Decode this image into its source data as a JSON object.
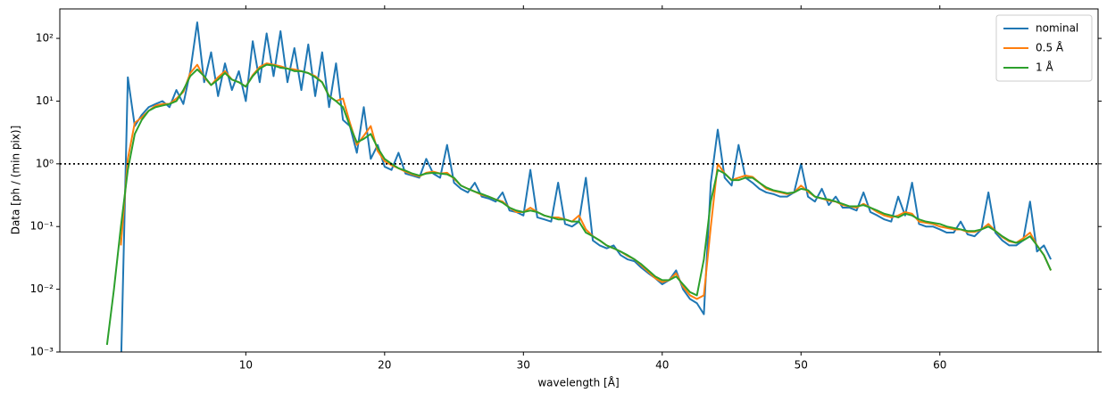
{
  "chart_data": {
    "type": "line",
    "x_label": "wavelength [Å]",
    "y_label": "Data [ph / (min pix)]",
    "xlim": [
      -3.4,
      71.4
    ],
    "xticks": [
      10,
      20,
      30,
      40,
      50,
      60
    ],
    "ylim": [
      0.001,
      295
    ],
    "yticks": [
      {
        "value": 0.001,
        "label": "10⁻³"
      },
      {
        "value": 0.01,
        "label": "10⁻²"
      },
      {
        "value": 0.1,
        "label": "10⁻¹"
      },
      {
        "value": 1,
        "label": "10⁰"
      },
      {
        "value": 10,
        "label": "10¹"
      },
      {
        "value": 100,
        "label": "10²"
      }
    ],
    "log_y": true,
    "reference_line": 1,
    "legend": "upper right",
    "x": [
      0,
      0.5,
      1,
      1.5,
      2,
      2.5,
      3,
      3.5,
      4,
      4.5,
      5,
      5.5,
      6,
      6.5,
      7,
      7.5,
      8,
      8.5,
      9,
      9.5,
      10,
      10.5,
      11,
      11.5,
      12,
      12.5,
      13,
      13.5,
      14,
      14.5,
      15,
      15.5,
      16,
      16.5,
      17,
      17.5,
      18,
      18.5,
      19,
      19.5,
      20,
      20.5,
      21,
      21.5,
      22,
      22.5,
      23,
      23.5,
      24,
      24.5,
      25,
      25.5,
      26,
      26.5,
      27,
      27.5,
      28,
      28.5,
      29,
      29.5,
      30,
      30.5,
      31,
      31.5,
      32,
      32.5,
      33,
      33.5,
      34,
      34.5,
      35,
      35.5,
      36,
      36.5,
      37,
      37.5,
      38,
      38.5,
      39,
      39.5,
      40,
      40.5,
      41,
      41.5,
      42,
      42.5,
      43,
      43.5,
      44,
      44.5,
      45,
      45.5,
      46,
      46.5,
      47,
      47.5,
      48,
      48.5,
      49,
      49.5,
      50,
      50.5,
      51,
      51.5,
      52,
      52.5,
      53,
      53.5,
      54,
      54.5,
      55,
      55.5,
      56,
      56.5,
      57,
      57.5,
      58,
      58.5,
      59,
      59.5,
      60,
      60.5,
      61,
      61.5,
      62,
      62.5,
      63,
      63.5,
      64,
      64.5,
      65,
      65.5,
      66,
      66.5,
      67,
      67.5,
      68
    ],
    "series": [
      {
        "name": "nominal",
        "color": "#1f77b4",
        "values": [
          null,
          null,
          0.0005,
          24,
          4,
          6,
          8,
          9,
          10,
          8,
          15,
          9,
          30,
          180,
          20,
          60,
          12,
          40,
          15,
          30,
          10,
          90,
          20,
          120,
          25,
          130,
          20,
          70,
          15,
          80,
          12,
          60,
          8,
          40,
          5,
          4,
          1.5,
          8,
          1.2,
          2,
          0.9,
          0.8,
          1.5,
          0.7,
          0.65,
          0.6,
          1.2,
          0.7,
          0.6,
          2,
          0.5,
          0.4,
          0.35,
          0.5,
          0.3,
          0.28,
          0.25,
          0.35,
          0.18,
          0.17,
          0.15,
          0.8,
          0.14,
          0.13,
          0.12,
          0.5,
          0.11,
          0.1,
          0.12,
          0.6,
          0.06,
          0.05,
          0.045,
          0.05,
          0.035,
          0.03,
          0.028,
          0.022,
          0.018,
          0.015,
          0.012,
          0.014,
          0.02,
          0.01,
          0.007,
          0.006,
          0.004,
          0.5,
          3.5,
          0.6,
          0.45,
          2,
          0.6,
          0.5,
          0.4,
          0.35,
          0.33,
          0.3,
          0.3,
          0.35,
          1.0,
          0.3,
          0.25,
          0.4,
          0.22,
          0.3,
          0.2,
          0.2,
          0.18,
          0.35,
          0.17,
          0.15,
          0.13,
          0.12,
          0.3,
          0.15,
          0.5,
          0.11,
          0.1,
          0.1,
          0.09,
          0.08,
          0.08,
          0.12,
          0.075,
          0.07,
          0.09,
          0.35,
          0.08,
          0.06,
          0.05,
          0.05,
          0.06,
          0.25,
          0.04,
          0.05,
          0.03
        ]
      },
      {
        "name": "0.5 Å",
        "color": "#ff7f0e",
        "values": [
          null,
          null,
          0.05,
          1.2,
          4.5,
          5.5,
          7,
          8.5,
          9,
          9,
          11,
          14,
          28,
          38,
          24,
          18,
          24,
          30,
          22,
          20,
          17,
          26,
          35,
          40,
          38,
          36,
          33,
          32,
          30,
          28,
          25,
          20,
          12,
          10,
          11,
          4.5,
          2,
          2.8,
          4,
          1.6,
          1.1,
          0.95,
          0.85,
          0.75,
          0.68,
          0.63,
          0.72,
          0.75,
          0.7,
          0.72,
          0.58,
          0.45,
          0.4,
          0.36,
          0.32,
          0.3,
          0.27,
          0.25,
          0.2,
          0.17,
          0.17,
          0.2,
          0.17,
          0.15,
          0.14,
          0.14,
          0.13,
          0.12,
          0.15,
          0.09,
          0.07,
          0.06,
          0.05,
          0.045,
          0.04,
          0.034,
          0.03,
          0.024,
          0.019,
          0.015,
          0.013,
          0.014,
          0.018,
          0.011,
          0.008,
          0.007,
          0.008,
          0.1,
          1.0,
          0.7,
          0.55,
          0.6,
          0.65,
          0.62,
          0.5,
          0.4,
          0.37,
          0.35,
          0.33,
          0.35,
          0.45,
          0.36,
          0.3,
          0.28,
          0.26,
          0.25,
          0.22,
          0.21,
          0.2,
          0.23,
          0.2,
          0.17,
          0.15,
          0.14,
          0.15,
          0.17,
          0.16,
          0.12,
          0.115,
          0.11,
          0.1,
          0.095,
          0.09,
          0.09,
          0.082,
          0.082,
          0.09,
          0.11,
          0.085,
          0.068,
          0.058,
          0.055,
          0.065,
          0.08,
          0.05,
          0.035,
          0.02
        ]
      },
      {
        "name": "1 Å",
        "color": "#2ca02c",
        "values": [
          0.0013,
          0.01,
          0.1,
          0.8,
          3.0,
          5,
          7,
          8,
          8.5,
          9,
          10,
          15,
          25,
          32,
          25,
          18,
          22,
          28,
          22,
          20,
          17,
          25,
          33,
          38,
          37,
          34,
          33,
          30,
          30,
          28,
          24,
          20,
          12,
          10,
          8,
          4,
          2.2,
          2.5,
          3.0,
          1.8,
          1.2,
          1.0,
          0.85,
          0.78,
          0.7,
          0.65,
          0.7,
          0.72,
          0.7,
          0.68,
          0.6,
          0.45,
          0.4,
          0.36,
          0.33,
          0.3,
          0.27,
          0.24,
          0.2,
          0.18,
          0.17,
          0.18,
          0.17,
          0.15,
          0.14,
          0.13,
          0.13,
          0.12,
          0.12,
          0.08,
          0.07,
          0.06,
          0.05,
          0.045,
          0.04,
          0.035,
          0.03,
          0.025,
          0.02,
          0.016,
          0.014,
          0.014,
          0.016,
          0.012,
          0.009,
          0.008,
          0.03,
          0.25,
          0.8,
          0.7,
          0.55,
          0.55,
          0.6,
          0.6,
          0.5,
          0.42,
          0.38,
          0.36,
          0.34,
          0.35,
          0.4,
          0.38,
          0.3,
          0.28,
          0.27,
          0.25,
          0.23,
          0.21,
          0.21,
          0.22,
          0.2,
          0.18,
          0.16,
          0.15,
          0.14,
          0.16,
          0.15,
          0.13,
          0.12,
          0.115,
          0.11,
          0.1,
          0.095,
          0.09,
          0.085,
          0.085,
          0.09,
          0.1,
          0.085,
          0.07,
          0.06,
          0.055,
          0.06,
          0.07,
          0.05,
          0.035,
          0.02
        ]
      }
    ]
  }
}
